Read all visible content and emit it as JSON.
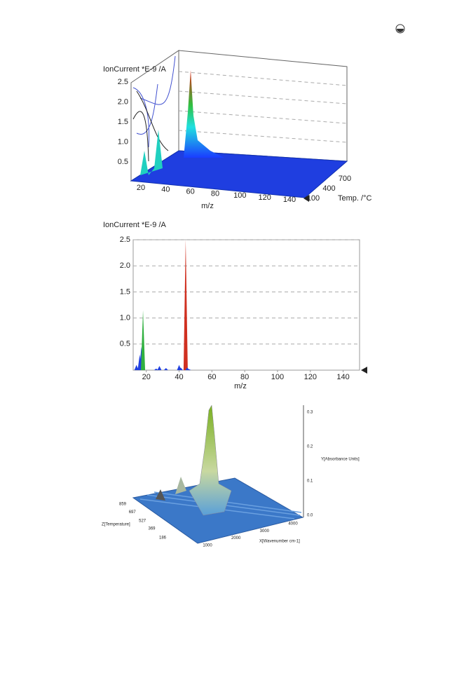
{
  "figure_3d_ms": {
    "y_label": "IonCurrent *E-9 /A",
    "x_label": "m/z",
    "z_label": "Temp. /°C",
    "yticks": [
      0.5,
      {
        "value": 1,
        "label": "1.0"
      },
      1.5,
      {
        "value": 2,
        "label": "2.0"
      },
      2.5
    ],
    "xticks": [
      20,
      40,
      60,
      80,
      100,
      120,
      140
    ],
    "zticks": [
      100,
      400,
      700
    ]
  },
  "chart_data": {
    "type": "bar",
    "y_label": "IonCurrent *E-9 /A",
    "x_label": "m/z",
    "x": [
      14,
      15,
      16,
      17,
      18,
      26,
      28,
      32,
      40,
      41,
      44,
      45,
      46
    ],
    "values": [
      0.1,
      0.05,
      0.3,
      0.45,
      1.15,
      0.03,
      0.08,
      0.04,
      0.1,
      0.05,
      2.5,
      0.05,
      0.02
    ],
    "xlim": [
      12,
      150
    ],
    "ylim": [
      0,
      2.5
    ],
    "xticks": [
      20,
      40,
      60,
      80,
      100,
      120,
      140
    ],
    "yticks": [
      0.5,
      {
        "value": 1,
        "label": "1.0"
      },
      1.5,
      {
        "value": 2,
        "label": "2.0"
      },
      2.5
    ],
    "grid": true
  },
  "figure_3d_ftir": {
    "y_label": "Y[Absorbance Units]",
    "x_label": "X[Wavenumber cm-1]",
    "z_label": "Z[Temperature]",
    "yticks": [
      {
        "value": 0,
        "label": "0.0"
      },
      0.1,
      0.2,
      0.3
    ],
    "xticks": [
      1000,
      2000,
      3000,
      4000
    ],
    "zticks": [
      186,
      369,
      527,
      697,
      859
    ]
  }
}
